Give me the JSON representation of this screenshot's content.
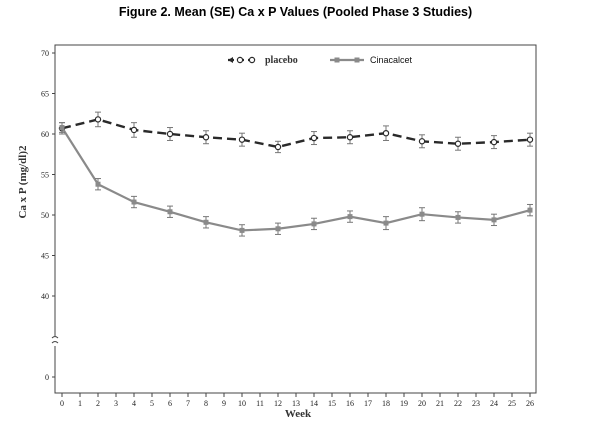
{
  "figure": {
    "title": "Figure 2. Mean (SE) Ca x P Values (Pooled Phase 3 Studies)"
  },
  "chart_data": {
    "type": "line",
    "title": "Figure 2. Mean (SE) Ca x P Values (Pooled Phase 3 Studies)",
    "xlabel": "Week",
    "ylabel": "Ca x P (mg/dl)2",
    "x": [
      0,
      2,
      4,
      6,
      8,
      10,
      12,
      14,
      16,
      18,
      20,
      22,
      24,
      26
    ],
    "x_ticks": [
      0,
      1,
      2,
      3,
      4,
      5,
      6,
      7,
      8,
      9,
      10,
      11,
      12,
      13,
      14,
      15,
      16,
      17,
      18,
      19,
      20,
      21,
      22,
      23,
      24,
      25,
      26
    ],
    "xlim": [
      0,
      26
    ],
    "y_ticks": [
      0,
      40,
      45,
      50,
      55,
      60,
      65,
      70
    ],
    "ylim": [
      0,
      70
    ],
    "y_axis_break": true,
    "grid": false,
    "legend_position": "top-center",
    "series": [
      {
        "name": "placebo",
        "style": "dashed",
        "marker": "open-circle",
        "color": "#2a2a2a",
        "values": [
          60.7,
          61.8,
          60.5,
          60.0,
          59.6,
          59.3,
          58.4,
          59.5,
          59.6,
          60.1,
          59.1,
          58.8,
          59.0,
          59.3
        ],
        "se": [
          0.7,
          0.9,
          0.9,
          0.8,
          0.8,
          0.8,
          0.7,
          0.8,
          0.8,
          0.9,
          0.8,
          0.8,
          0.8,
          0.8
        ]
      },
      {
        "name": "Cinacalcet",
        "style": "solid",
        "marker": "filled-square",
        "color": "#8a8a8a",
        "values": [
          60.8,
          53.8,
          51.6,
          50.4,
          49.1,
          48.1,
          48.3,
          48.9,
          49.8,
          49.0,
          50.1,
          49.7,
          49.4,
          50.6
        ],
        "se": [
          0.6,
          0.7,
          0.7,
          0.7,
          0.7,
          0.7,
          0.7,
          0.7,
          0.7,
          0.8,
          0.8,
          0.7,
          0.7,
          0.7
        ]
      }
    ]
  }
}
